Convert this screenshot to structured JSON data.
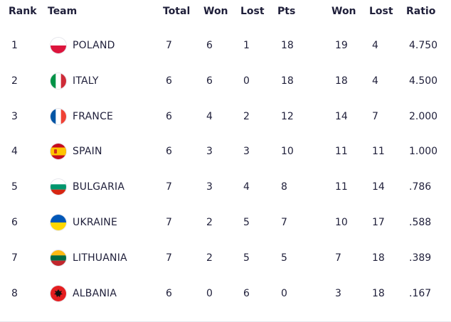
{
  "headers": {
    "rank": "Rank",
    "team": "Team",
    "total": "Total",
    "won": "Won",
    "lost": "Lost",
    "pts": "Pts",
    "sets_won": "Won",
    "sets_lost": "Lost",
    "ratio": "Ratio"
  },
  "rows": [
    {
      "rank": "1",
      "team": "POLAND",
      "flag": "poland-flag-icon",
      "total": "7",
      "won": "6",
      "lost": "1",
      "pts": "18",
      "sets_won": "19",
      "sets_lost": "4",
      "ratio": "4.750"
    },
    {
      "rank": "2",
      "team": "ITALY",
      "flag": "italy-flag-icon",
      "total": "6",
      "won": "6",
      "lost": "0",
      "pts": "18",
      "sets_won": "18",
      "sets_lost": "4",
      "ratio": "4.500"
    },
    {
      "rank": "3",
      "team": "FRANCE",
      "flag": "france-flag-icon",
      "total": "6",
      "won": "4",
      "lost": "2",
      "pts": "12",
      "sets_won": "14",
      "sets_lost": "7",
      "ratio": "2.000"
    },
    {
      "rank": "4",
      "team": "SPAIN",
      "flag": "spain-flag-icon",
      "total": "6",
      "won": "3",
      "lost": "3",
      "pts": "10",
      "sets_won": "11",
      "sets_lost": "11",
      "ratio": "1.000"
    },
    {
      "rank": "5",
      "team": "BULGARIA",
      "flag": "bulgaria-flag-icon",
      "total": "7",
      "won": "3",
      "lost": "4",
      "pts": "8",
      "sets_won": "11",
      "sets_lost": "14",
      "ratio": ".786"
    },
    {
      "rank": "6",
      "team": "UKRAINE",
      "flag": "ukraine-flag-icon",
      "total": "7",
      "won": "2",
      "lost": "5",
      "pts": "7",
      "sets_won": "10",
      "sets_lost": "17",
      "ratio": ".588"
    },
    {
      "rank": "7",
      "team": "LITHUANIA",
      "flag": "lithuania-flag-icon",
      "total": "7",
      "won": "2",
      "lost": "5",
      "pts": "5",
      "sets_won": "7",
      "sets_lost": "18",
      "ratio": ".389"
    },
    {
      "rank": "8",
      "team": "ALBANIA",
      "flag": "albania-flag-icon",
      "total": "6",
      "won": "0",
      "lost": "6",
      "pts": "0",
      "sets_won": "3",
      "sets_lost": "18",
      "ratio": ".167"
    }
  ],
  "colors": {
    "text": "#1f1f3a",
    "divider": "#e8e8ee"
  }
}
